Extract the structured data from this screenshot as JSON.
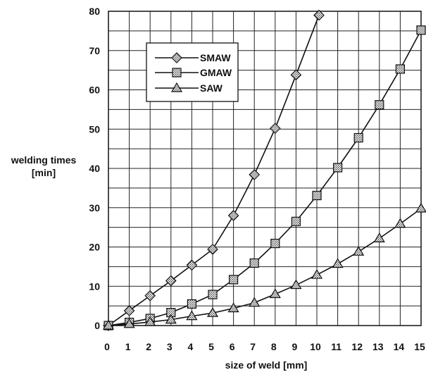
{
  "chart_data": {
    "type": "line",
    "title": "",
    "xlabel": "size of weld  [mm]",
    "ylabel_lines": [
      "welding times",
      "[min]"
    ],
    "x": [
      0,
      1,
      2,
      3,
      4,
      5,
      6,
      7,
      8,
      9,
      10,
      11,
      12,
      13,
      14,
      15
    ],
    "xlim": [
      0,
      15
    ],
    "ylim": [
      0,
      80
    ],
    "x_ticks": [
      "0",
      "1",
      "2",
      "3",
      "4",
      "5",
      "6",
      "7",
      "8",
      "9",
      "10",
      "11",
      "12",
      "13",
      "14",
      "15"
    ],
    "y_ticks": [
      "0",
      "10",
      "20",
      "30",
      "40",
      "50",
      "60",
      "70",
      "80"
    ],
    "grid": true,
    "legend_position": "top-left",
    "series": [
      {
        "name": "SMAW",
        "marker": "diamond",
        "x": [
          0,
          1,
          2,
          3,
          4,
          5,
          6,
          7,
          8,
          9,
          10.1
        ],
        "values": [
          0,
          3.8,
          7.6,
          11.4,
          15.4,
          19.4,
          28,
          38.4,
          50.2,
          63.8,
          79
        ]
      },
      {
        "name": "GMAW",
        "marker": "square",
        "x": [
          0,
          1,
          2,
          3,
          4,
          5,
          6,
          7,
          8,
          9,
          10,
          11,
          12,
          13,
          14,
          15
        ],
        "values": [
          0,
          0.8,
          1.8,
          3.3,
          5.5,
          7.9,
          11.7,
          15.9,
          20.9,
          26.5,
          33.1,
          40.2,
          47.8,
          56.2,
          65.3,
          75.2
        ]
      },
      {
        "name": "SAW",
        "marker": "triangle",
        "x": [
          0,
          1,
          2,
          3,
          4,
          5,
          6,
          7,
          8,
          9,
          10,
          11,
          12,
          13,
          14,
          15
        ],
        "values": [
          0,
          0.4,
          0.9,
          1.5,
          2.4,
          3.2,
          4.4,
          5.8,
          8.0,
          10.3,
          12.9,
          15.7,
          18.8,
          22.2,
          25.9,
          29.8
        ]
      }
    ]
  }
}
